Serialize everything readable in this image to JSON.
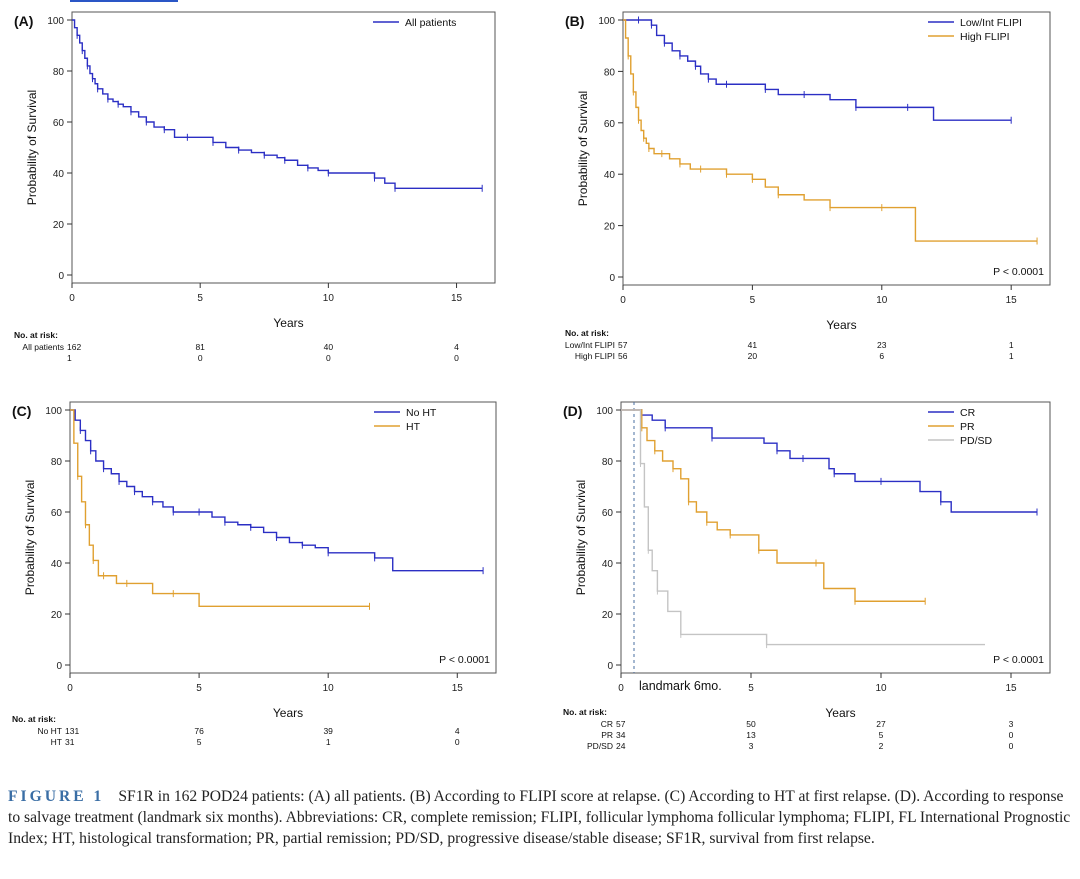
{
  "colors": {
    "blue": "#2b2fc4",
    "orange": "#e0a030",
    "gray": "#c4c4c4",
    "axis": "#333333",
    "caption_label": "#3a6ea5"
  },
  "caption": {
    "label": "FIGURE 1",
    "text": "SF1R in 162 POD24 patients: (A) all patients. (B) According to FLIPI score at relapse. (C) According to HT at first relapse. (D). According to response to salvage treatment (landmark six months). Abbreviations: CR, complete remission; FLIPI, follicular lymphoma follicular lymphoma; FLIPI, FL International Prognostic Index; HT, histological transformation; PR, partial remission; PD/SD, progressive disease/stable disease; SF1R, survival from first relapse."
  },
  "chart_data": [
    {
      "type": "line",
      "panel_label": "(A)",
      "xlabel": "Years",
      "ylabel": "Probability of Survival",
      "xlim": [
        0,
        16.5
      ],
      "ylim": [
        0,
        100
      ],
      "xticks": [
        0,
        5,
        10,
        15
      ],
      "yticks": [
        0,
        20,
        40,
        60,
        80,
        100
      ],
      "legend": "top-right",
      "p_value": "",
      "series": [
        {
          "name": "All patients",
          "color": "blue",
          "x": [
            0,
            0.1,
            0.2,
            0.3,
            0.4,
            0.5,
            0.6,
            0.7,
            0.8,
            0.9,
            1.0,
            1.2,
            1.4,
            1.6,
            1.8,
            2.0,
            2.3,
            2.6,
            2.9,
            3.2,
            3.6,
            4.0,
            4.5,
            5.0,
            5.5,
            6.0,
            6.5,
            7.0,
            7.5,
            8.0,
            8.3,
            8.8,
            9.2,
            9.6,
            10.0,
            11.0,
            11.8,
            12.2,
            12.6,
            13.0,
            16.0
          ],
          "y": [
            100,
            97,
            94,
            91,
            88,
            85,
            82,
            79,
            77,
            75,
            73,
            71,
            69,
            68,
            67,
            66,
            64,
            62,
            60,
            58,
            57,
            54,
            54,
            54,
            52,
            50,
            49,
            48,
            47,
            46,
            45,
            43,
            42,
            41,
            40,
            40,
            38,
            36,
            34,
            34,
            34
          ]
        }
      ],
      "risk_table": {
        "title": "No. at risk:",
        "times": [
          0,
          5,
          10,
          15
        ],
        "rows": [
          {
            "label": "All patients",
            "values": [
              "162",
              "81",
              "40",
              "4"
            ]
          },
          {
            "label": "",
            "values": [
              "1",
              "0",
              "0",
              "0"
            ]
          }
        ]
      }
    },
    {
      "type": "line",
      "panel_label": "(B)",
      "xlabel": "Years",
      "ylabel": "Probability of Survival",
      "xlim": [
        0,
        16.5
      ],
      "ylim": [
        0,
        100
      ],
      "xticks": [
        0,
        5,
        10,
        15
      ],
      "yticks": [
        0,
        20,
        40,
        60,
        80,
        100
      ],
      "legend": "top-right",
      "p_value": "P < 0.0001",
      "series": [
        {
          "name": "Low/Int FLIPI",
          "color": "blue",
          "x": [
            0,
            0.3,
            0.6,
            0.9,
            1.1,
            1.3,
            1.6,
            1.9,
            2.2,
            2.5,
            2.8,
            3.0,
            3.3,
            3.6,
            4.0,
            5.0,
            5.5,
            6.0,
            7.0,
            8.0,
            9.0,
            10.0,
            11.0,
            12.0,
            15.0
          ],
          "y": [
            100,
            100,
            100,
            100,
            98,
            94,
            91,
            88,
            86,
            84,
            82,
            79,
            77,
            75,
            75,
            75,
            73,
            71,
            71,
            69,
            66,
            66,
            66,
            61,
            61
          ]
        },
        {
          "name": "High FLIPI",
          "color": "orange",
          "x": [
            0,
            0.1,
            0.2,
            0.3,
            0.4,
            0.5,
            0.6,
            0.7,
            0.8,
            0.9,
            1.0,
            1.2,
            1.5,
            1.8,
            2.2,
            2.6,
            3.0,
            3.5,
            4.0,
            4.5,
            5.0,
            5.5,
            6.0,
            7.0,
            8.0,
            9.0,
            10.0,
            11.3,
            16.0
          ],
          "y": [
            100,
            93,
            86,
            79,
            72,
            66,
            61,
            57,
            54,
            52,
            50,
            48,
            48,
            46,
            44,
            42,
            42,
            42,
            40,
            40,
            38,
            35,
            32,
            30,
            27,
            27,
            27,
            14,
            14
          ]
        }
      ],
      "risk_table": {
        "title": "No. at risk:",
        "times": [
          0,
          5,
          10,
          15
        ],
        "rows": [
          {
            "label": "Low/Int FLIPI",
            "values": [
              "57",
              "41",
              "23",
              "1"
            ]
          },
          {
            "label": "High FLIPI",
            "values": [
              "56",
              "20",
              "6",
              "1"
            ]
          }
        ]
      }
    },
    {
      "type": "line",
      "panel_label": "(C)",
      "xlabel": "Years",
      "ylabel": "Probability of Survival",
      "xlim": [
        0,
        16.5
      ],
      "ylim": [
        0,
        100
      ],
      "xticks": [
        0,
        5,
        10,
        15
      ],
      "yticks": [
        0,
        20,
        40,
        60,
        80,
        100
      ],
      "legend": "top-right",
      "p_value": "P < 0.0001",
      "series": [
        {
          "name": "No HT",
          "color": "blue",
          "x": [
            0,
            0.2,
            0.4,
            0.6,
            0.8,
            1.0,
            1.3,
            1.6,
            1.9,
            2.2,
            2.5,
            2.8,
            3.2,
            3.6,
            4.0,
            4.5,
            5.0,
            5.5,
            6.0,
            6.5,
            7.0,
            7.5,
            8.0,
            8.5,
            9.0,
            9.5,
            10.0,
            11.0,
            11.8,
            12.5,
            16.0
          ],
          "y": [
            100,
            96,
            92,
            88,
            84,
            80,
            77,
            75,
            72,
            70,
            68,
            66,
            64,
            62,
            60,
            60,
            60,
            58,
            56,
            55,
            54,
            52,
            50,
            48,
            47,
            46,
            44,
            44,
            42,
            37,
            37
          ]
        },
        {
          "name": "HT",
          "color": "orange",
          "x": [
            0,
            0.15,
            0.3,
            0.45,
            0.6,
            0.75,
            0.9,
            1.1,
            1.3,
            1.8,
            2.2,
            3.2,
            4.0,
            5.0,
            11.6
          ],
          "y": [
            100,
            87,
            74,
            64,
            55,
            47,
            41,
            35,
            35,
            32,
            32,
            28,
            28,
            23,
            23
          ]
        }
      ],
      "risk_table": {
        "title": "No. at risk:",
        "times": [
          0,
          5,
          10,
          15
        ],
        "rows": [
          {
            "label": "No HT",
            "values": [
              "131",
              "76",
              "39",
              "4"
            ]
          },
          {
            "label": "HT",
            "values": [
              "31",
              "5",
              "1",
              "0"
            ]
          }
        ]
      }
    },
    {
      "type": "line",
      "panel_label": "(D)",
      "xlabel": "Years",
      "ylabel": "Probability of Survival",
      "xlim": [
        0,
        16.5
      ],
      "ylim": [
        0,
        100
      ],
      "xticks": [
        0,
        5,
        10,
        15
      ],
      "yticks": [
        0,
        20,
        40,
        60,
        80,
        100
      ],
      "legend": "top-right",
      "p_value": "P < 0.0001",
      "landmark": {
        "x": 0.5,
        "label": "landmark 6mo."
      },
      "series": [
        {
          "name": "CR",
          "color": "blue",
          "x": [
            0,
            0.6,
            0.8,
            1.2,
            1.7,
            2.5,
            3.5,
            5.5,
            6.0,
            6.5,
            7.0,
            8.0,
            8.2,
            9.0,
            10.0,
            11.5,
            12.3,
            12.7,
            16.0
          ],
          "y": [
            100,
            100,
            98,
            96,
            93,
            93,
            89,
            87,
            84,
            81,
            81,
            77,
            75,
            72,
            72,
            68,
            64,
            60,
            60
          ]
        },
        {
          "name": "PR",
          "color": "orange",
          "x": [
            0,
            0.6,
            0.8,
            1.0,
            1.3,
            1.6,
            2.0,
            2.3,
            2.6,
            2.9,
            3.3,
            3.7,
            4.2,
            4.8,
            5.3,
            6.0,
            7.5,
            7.8,
            9.0,
            10.0,
            11.7
          ],
          "y": [
            100,
            100,
            93,
            88,
            84,
            80,
            77,
            73,
            64,
            60,
            56,
            53,
            51,
            51,
            45,
            40,
            40,
            30,
            25,
            25,
            25
          ]
        },
        {
          "name": "PD/SD",
          "color": "gray",
          "x": [
            0,
            0.6,
            0.75,
            0.9,
            1.05,
            1.2,
            1.4,
            1.8,
            2.3,
            3.0,
            5.6,
            14.0
          ],
          "y": [
            100,
            100,
            79,
            62,
            45,
            37,
            29,
            21,
            12,
            12,
            8,
            8
          ]
        }
      ],
      "risk_table": {
        "title": "No. at risk:",
        "times": [
          0,
          5,
          10,
          15
        ],
        "rows": [
          {
            "label": "CR",
            "values": [
              "57",
              "50",
              "27",
              "3"
            ]
          },
          {
            "label": "PR",
            "values": [
              "34",
              "13",
              "5",
              "0"
            ]
          },
          {
            "label": "PD/SD",
            "values": [
              "24",
              "3",
              "2",
              "0"
            ]
          }
        ]
      }
    }
  ]
}
